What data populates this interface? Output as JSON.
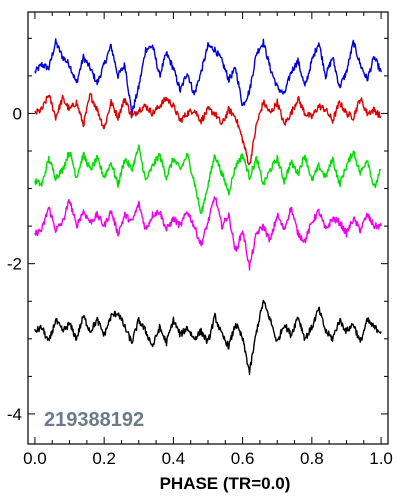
{
  "chart_data": {
    "type": "line",
    "title": "",
    "xlabel": "PHASE (TR=0.0)",
    "ylabel": "",
    "annotation": "219388192",
    "xlim": [
      -0.02,
      1.02
    ],
    "ylim": [
      -4.4,
      1.35
    ],
    "x_ticks": [
      0.0,
      0.2,
      0.4,
      0.6,
      0.8,
      1.0
    ],
    "x_tick_labels": [
      "0.0",
      "0.2",
      "0.4",
      "0.6",
      "0.8",
      "1.0"
    ],
    "y_ticks": [
      0,
      -2,
      -4
    ],
    "y_tick_labels": [
      "0",
      "-2",
      "-4"
    ],
    "grid": false,
    "legend": "none",
    "series": [
      {
        "color": "#0000dd",
        "x": [
          0.0,
          0.02,
          0.04,
          0.06,
          0.08,
          0.1,
          0.12,
          0.14,
          0.16,
          0.18,
          0.2,
          0.22,
          0.24,
          0.26,
          0.28,
          0.3,
          0.32,
          0.34,
          0.36,
          0.38,
          0.4,
          0.42,
          0.44,
          0.46,
          0.48,
          0.5,
          0.52,
          0.54,
          0.56,
          0.58,
          0.6,
          0.62,
          0.64,
          0.66,
          0.68,
          0.7,
          0.72,
          0.74,
          0.76,
          0.78,
          0.8,
          0.82,
          0.84,
          0.86,
          0.88,
          0.9,
          0.92,
          0.94,
          0.96,
          0.98,
          1.0
        ],
        "values": [
          0.55,
          0.65,
          0.6,
          0.95,
          0.75,
          0.65,
          0.4,
          0.75,
          0.6,
          0.4,
          0.65,
          0.9,
          0.5,
          0.65,
          0.0,
          0.35,
          0.85,
          0.9,
          0.5,
          0.8,
          0.6,
          0.3,
          0.55,
          0.25,
          0.55,
          0.9,
          0.85,
          0.7,
          0.45,
          0.6,
          0.1,
          0.3,
          0.8,
          0.95,
          0.6,
          0.35,
          0.25,
          0.55,
          0.7,
          0.35,
          0.7,
          0.95,
          0.5,
          0.75,
          0.35,
          0.55,
          0.95,
          0.65,
          0.45,
          0.75,
          0.55
        ]
      },
      {
        "color": "#dd0000",
        "x": [
          0.0,
          0.02,
          0.04,
          0.06,
          0.08,
          0.1,
          0.12,
          0.14,
          0.16,
          0.18,
          0.2,
          0.22,
          0.24,
          0.26,
          0.28,
          0.3,
          0.32,
          0.34,
          0.36,
          0.38,
          0.4,
          0.42,
          0.44,
          0.46,
          0.48,
          0.5,
          0.52,
          0.54,
          0.56,
          0.58,
          0.6,
          0.62,
          0.64,
          0.66,
          0.68,
          0.7,
          0.72,
          0.74,
          0.76,
          0.78,
          0.8,
          0.82,
          0.84,
          0.86,
          0.88,
          0.9,
          0.92,
          0.94,
          0.96,
          0.98,
          1.0
        ],
        "values": [
          0.0,
          0.05,
          0.25,
          -0.05,
          0.2,
          0.05,
          0.15,
          -0.15,
          0.25,
          0.05,
          -0.2,
          0.15,
          -0.05,
          0.2,
          -0.05,
          0.05,
          0.1,
          0.0,
          0.1,
          0.2,
          0.1,
          -0.1,
          0.0,
          0.05,
          -0.1,
          0.05,
          0.0,
          -0.15,
          0.05,
          -0.05,
          -0.35,
          -0.7,
          -0.15,
          0.15,
          0.0,
          0.15,
          -0.15,
          0.0,
          0.2,
          0.0,
          -0.05,
          0.1,
          0.05,
          -0.1,
          0.15,
          0.0,
          -0.05,
          0.2,
          0.0,
          0.05,
          -0.05
        ]
      },
      {
        "color": "#00dd00",
        "x": [
          0.0,
          0.02,
          0.04,
          0.06,
          0.08,
          0.1,
          0.12,
          0.14,
          0.16,
          0.18,
          0.2,
          0.22,
          0.24,
          0.26,
          0.28,
          0.3,
          0.32,
          0.34,
          0.36,
          0.38,
          0.4,
          0.42,
          0.44,
          0.46,
          0.48,
          0.5,
          0.52,
          0.54,
          0.56,
          0.58,
          0.6,
          0.62,
          0.64,
          0.66,
          0.68,
          0.7,
          0.72,
          0.74,
          0.76,
          0.78,
          0.8,
          0.82,
          0.84,
          0.86,
          0.88,
          0.9,
          0.92,
          0.94,
          0.96,
          0.98,
          1.0
        ],
        "values": [
          -0.9,
          -0.95,
          -0.6,
          -0.85,
          -0.75,
          -0.5,
          -0.85,
          -0.55,
          -0.75,
          -0.6,
          -0.85,
          -0.65,
          -0.95,
          -0.6,
          -0.75,
          -0.45,
          -0.9,
          -0.7,
          -0.55,
          -0.85,
          -0.6,
          -0.75,
          -0.55,
          -0.9,
          -1.35,
          -0.95,
          -0.55,
          -0.8,
          -1.05,
          -0.7,
          -0.55,
          -0.85,
          -0.6,
          -0.95,
          -0.75,
          -0.6,
          -0.9,
          -0.65,
          -0.8,
          -0.55,
          -0.9,
          -0.7,
          -0.85,
          -0.6,
          -0.95,
          -0.7,
          -0.5,
          -0.8,
          -0.6,
          -1.0,
          -0.75
        ]
      },
      {
        "color": "#ee00ee",
        "x": [
          0.0,
          0.02,
          0.04,
          0.06,
          0.08,
          0.1,
          0.12,
          0.14,
          0.16,
          0.18,
          0.2,
          0.22,
          0.24,
          0.26,
          0.28,
          0.3,
          0.32,
          0.34,
          0.36,
          0.38,
          0.4,
          0.42,
          0.44,
          0.46,
          0.48,
          0.5,
          0.52,
          0.54,
          0.56,
          0.58,
          0.6,
          0.62,
          0.64,
          0.66,
          0.68,
          0.7,
          0.72,
          0.74,
          0.76,
          0.78,
          0.8,
          0.82,
          0.84,
          0.86,
          0.88,
          0.9,
          0.92,
          0.94,
          0.96,
          0.98,
          1.0
        ],
        "values": [
          -1.6,
          -1.55,
          -1.25,
          -1.55,
          -1.45,
          -1.15,
          -1.5,
          -1.3,
          -1.45,
          -1.35,
          -1.5,
          -1.3,
          -1.6,
          -1.35,
          -1.45,
          -1.2,
          -1.55,
          -1.35,
          -1.3,
          -1.55,
          -1.4,
          -1.5,
          -1.3,
          -1.5,
          -1.75,
          -1.45,
          -1.1,
          -1.5,
          -1.35,
          -1.85,
          -1.55,
          -2.05,
          -1.6,
          -1.5,
          -1.7,
          -1.35,
          -1.55,
          -1.25,
          -1.6,
          -1.7,
          -1.45,
          -1.3,
          -1.55,
          -1.4,
          -1.45,
          -1.6,
          -1.4,
          -1.55,
          -1.35,
          -1.5,
          -1.5
        ]
      },
      {
        "color": "#000000",
        "x": [
          0.0,
          0.02,
          0.04,
          0.06,
          0.08,
          0.1,
          0.12,
          0.14,
          0.16,
          0.18,
          0.2,
          0.22,
          0.24,
          0.26,
          0.28,
          0.3,
          0.32,
          0.34,
          0.36,
          0.38,
          0.4,
          0.42,
          0.44,
          0.46,
          0.48,
          0.5,
          0.52,
          0.54,
          0.56,
          0.58,
          0.6,
          0.62,
          0.64,
          0.66,
          0.68,
          0.7,
          0.72,
          0.74,
          0.76,
          0.78,
          0.8,
          0.82,
          0.84,
          0.86,
          0.88,
          0.9,
          0.92,
          0.94,
          0.96,
          0.98,
          1.0
        ],
        "values": [
          -2.9,
          -2.85,
          -3.05,
          -2.75,
          -2.9,
          -2.8,
          -3.0,
          -2.7,
          -2.9,
          -2.75,
          -2.95,
          -2.7,
          -2.65,
          -2.85,
          -3.05,
          -2.75,
          -2.9,
          -3.1,
          -2.85,
          -3.05,
          -2.75,
          -2.95,
          -2.85,
          -3.0,
          -2.9,
          -3.05,
          -2.7,
          -2.95,
          -3.1,
          -2.8,
          -3.0,
          -3.45,
          -2.9,
          -2.5,
          -2.75,
          -3.05,
          -2.8,
          -2.95,
          -2.7,
          -3.0,
          -2.85,
          -2.6,
          -2.9,
          -3.0,
          -2.75,
          -2.9,
          -2.8,
          -3.05,
          -2.75,
          -2.85,
          -2.9
        ]
      }
    ]
  }
}
